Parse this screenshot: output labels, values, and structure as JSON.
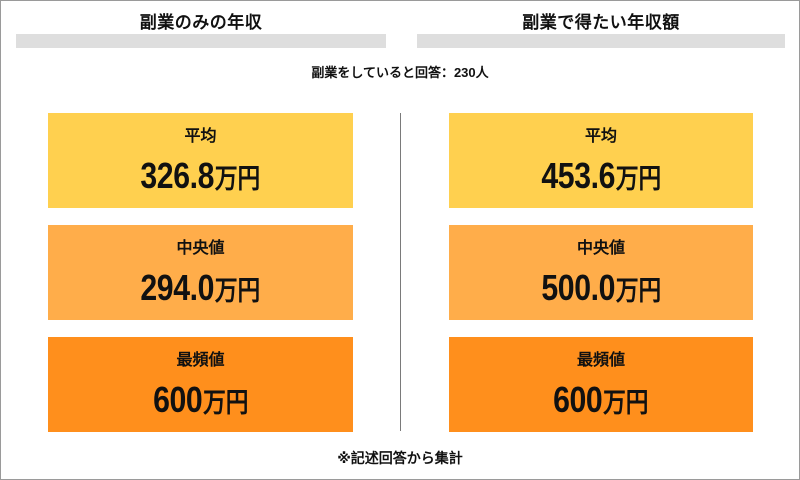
{
  "survey_note": "副業をしていると回答：230人",
  "footnote": "※記述回答から集計",
  "columns": [
    {
      "title": "副業のみの年収",
      "stats": [
        {
          "label": "平均",
          "value": "326.8",
          "unit": "万円"
        },
        {
          "label": "中央値",
          "value": "294.0",
          "unit": "万円"
        },
        {
          "label": "最頻値",
          "value": "600",
          "unit": "万円"
        }
      ]
    },
    {
      "title": "副業で得たい年収額",
      "stats": [
        {
          "label": "平均",
          "value": "453.6",
          "unit": "万円"
        },
        {
          "label": "中央値",
          "value": "500.0",
          "unit": "万円"
        },
        {
          "label": "最頻値",
          "value": "600",
          "unit": "万円"
        }
      ]
    }
  ],
  "colors": {
    "mean": "#FFD04F",
    "median": "#FFAD4A",
    "mode": "#FF8F1C",
    "header_bar": "#DEDEDE",
    "divider": "#7A7A7A"
  }
}
